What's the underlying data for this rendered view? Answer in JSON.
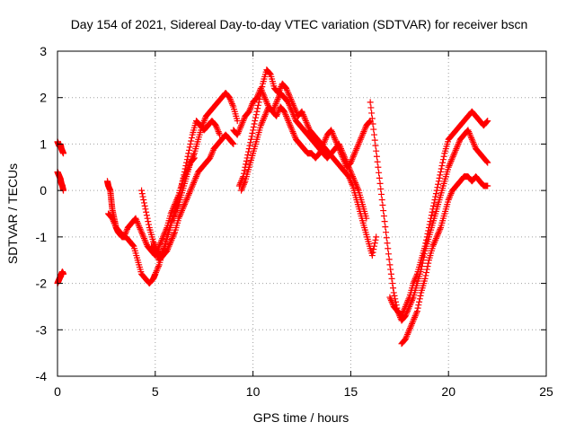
{
  "chart_data": {
    "type": "scatter",
    "title": "Day 154 of 2021, Sidereal Day-to-day VTEC variation (SDTVAR) for receiver bscn",
    "xlabel": "GPS time / hours",
    "ylabel": "SDTVAR / TECUs",
    "xlim": [
      0,
      25
    ],
    "ylim": [
      -4,
      3
    ],
    "xticks": [
      0,
      5,
      10,
      15,
      20,
      25
    ],
    "yticks": [
      -4,
      -3,
      -2,
      -1,
      0,
      1,
      2,
      3
    ],
    "grid": true,
    "marker": "plus",
    "color": "#ff0000",
    "series": [
      {
        "x": [
          0.0,
          0.05,
          0.1,
          0.15,
          0.2,
          0.25,
          0.3
        ],
        "y": [
          1.05,
          1.0,
          0.95,
          1.0,
          0.9,
          0.85,
          0.8
        ]
      },
      {
        "x": [
          0.0,
          0.05,
          0.1,
          0.15,
          0.2,
          0.25,
          0.3
        ],
        "y": [
          0.4,
          0.35,
          0.3,
          0.25,
          0.15,
          0.1,
          0.0
        ]
      },
      {
        "x": [
          0.0,
          0.05,
          0.1,
          0.15,
          0.2,
          0.25,
          0.3
        ],
        "y": [
          -2.0,
          -1.95,
          -1.9,
          -1.85,
          -1.8,
          -1.75,
          -1.8
        ]
      },
      {
        "x": [
          2.55,
          2.6,
          2.7,
          2.75,
          2.8,
          2.9,
          3.0,
          3.1,
          3.3,
          3.5,
          3.7,
          3.9,
          4.1,
          4.3,
          4.5,
          4.7,
          4.9,
          5.0,
          5.2,
          5.4,
          5.6,
          5.8,
          6.0,
          6.2,
          6.4,
          6.6,
          6.8,
          7.0,
          7.2,
          7.4,
          7.6,
          7.8,
          8.0,
          8.2,
          8.4,
          8.6,
          8.8,
          9.0,
          9.2
        ],
        "y": [
          0.2,
          0.1,
          0.0,
          -0.2,
          -0.4,
          -0.6,
          -0.8,
          -0.9,
          -1.0,
          -1.0,
          -1.1,
          -1.2,
          -1.5,
          -1.8,
          -1.9,
          -2.0,
          -1.9,
          -1.8,
          -1.6,
          -1.3,
          -1.0,
          -0.7,
          -0.5,
          -0.3,
          0.0,
          0.3,
          0.6,
          0.8,
          1.1,
          1.4,
          1.6,
          1.7,
          1.8,
          1.9,
          2.0,
          2.1,
          2.0,
          1.8,
          1.5
        ]
      },
      {
        "x": [
          2.6,
          2.8,
          3.0,
          3.2,
          3.4,
          3.6,
          3.8,
          4.0,
          4.2,
          4.4,
          4.6,
          4.8,
          5.0,
          5.2,
          5.4,
          5.6,
          5.8,
          6.0,
          6.2,
          6.4,
          6.6,
          6.8,
          7.0
        ],
        "y": [
          -0.5,
          -0.6,
          -0.8,
          -0.9,
          -1.0,
          -0.8,
          -0.7,
          -0.6,
          -0.8,
          -1.0,
          -1.2,
          -1.3,
          -1.4,
          -1.2,
          -1.0,
          -0.8,
          -0.5,
          -0.3,
          -0.1,
          0.2,
          0.4,
          0.6,
          0.7
        ]
      },
      {
        "x": [
          4.3,
          4.5,
          4.7,
          4.9,
          5.1,
          5.3,
          5.5,
          5.7,
          5.9,
          6.1,
          6.3,
          6.5,
          6.7,
          6.9,
          7.1,
          7.3,
          7.5,
          7.7,
          7.9,
          8.1,
          8.3
        ],
        "y": [
          0.0,
          -0.4,
          -0.8,
          -1.1,
          -1.3,
          -1.4,
          -1.2,
          -0.9,
          -0.6,
          -0.3,
          0.0,
          0.4,
          0.8,
          1.2,
          1.5,
          1.4,
          1.3,
          1.4,
          1.5,
          1.4,
          1.2
        ]
      },
      {
        "x": [
          4.8,
          5.0,
          5.2,
          5.4,
          5.6,
          5.8,
          6.0,
          6.2,
          6.4,
          6.6,
          6.8,
          7.0,
          7.2,
          7.4,
          7.6,
          7.8,
          8.0,
          8.2,
          8.4,
          8.6,
          8.8,
          9.0
        ],
        "y": [
          -1.2,
          -1.3,
          -1.5,
          -1.4,
          -1.3,
          -1.1,
          -0.9,
          -0.6,
          -0.4,
          -0.2,
          0.0,
          0.2,
          0.4,
          0.5,
          0.6,
          0.7,
          0.9,
          1.0,
          1.1,
          1.2,
          1.1,
          1.0
        ]
      },
      {
        "x": [
          9.3,
          9.5,
          9.7,
          9.9,
          10.1,
          10.3,
          10.5,
          10.7,
          10.9,
          11.1,
          11.3,
          11.5,
          11.7,
          11.9,
          12.1,
          12.3,
          12.5,
          12.7,
          12.9,
          13.1,
          13.3,
          13.5,
          13.7,
          13.9,
          14.1,
          14.3,
          14.5,
          14.7,
          14.9,
          15.1,
          15.3,
          15.5,
          15.7,
          15.9,
          16.1,
          16.3
        ],
        "y": [
          0.1,
          0.3,
          0.7,
          1.1,
          1.5,
          1.9,
          2.3,
          2.6,
          2.5,
          2.2,
          2.1,
          2.3,
          2.2,
          2.0,
          1.8,
          1.6,
          1.7,
          1.5,
          1.3,
          1.2,
          1.1,
          1.0,
          0.9,
          0.8,
          0.7,
          0.6,
          0.5,
          0.4,
          0.3,
          0.1,
          -0.2,
          -0.5,
          -0.8,
          -1.1,
          -1.4,
          -1.0
        ]
      },
      {
        "x": [
          9.0,
          9.2,
          9.4,
          9.6,
          9.8,
          10.0,
          10.2,
          10.4,
          10.6,
          10.8,
          11.0,
          11.2,
          11.4,
          11.6,
          11.8,
          12.0,
          12.2,
          12.4,
          12.6,
          12.8,
          13.0,
          13.2,
          13.4,
          13.6,
          13.8,
          14.0,
          14.2,
          14.4,
          14.6,
          14.8,
          15.0,
          15.2,
          15.4,
          15.6,
          15.8
        ],
        "y": [
          1.3,
          1.2,
          1.4,
          1.6,
          1.7,
          1.9,
          2.0,
          2.2,
          2.0,
          1.8,
          1.7,
          1.9,
          2.1,
          2.0,
          1.9,
          1.7,
          1.5,
          1.4,
          1.3,
          1.2,
          1.1,
          1.0,
          0.9,
          0.8,
          0.7,
          0.8,
          0.9,
          1.0,
          0.8,
          0.6,
          0.4,
          0.2,
          0.0,
          -0.3,
          -0.6
        ]
      },
      {
        "x": [
          9.4,
          9.6,
          9.8,
          10.0,
          10.2,
          10.4,
          10.6,
          10.8,
          11.0,
          11.2,
          11.4,
          11.6,
          11.8,
          12.0,
          12.2,
          12.4,
          12.6,
          12.8,
          13.0,
          13.2,
          13.4,
          13.6,
          13.8,
          14.0,
          14.2,
          14.4,
          14.6,
          14.8,
          15.0,
          15.2,
          15.4,
          15.6,
          15.8,
          16.0
        ],
        "y": [
          0.0,
          0.2,
          0.5,
          0.8,
          1.1,
          1.4,
          1.6,
          1.8,
          1.7,
          1.6,
          1.8,
          1.7,
          1.5,
          1.3,
          1.1,
          1.0,
          0.9,
          0.8,
          0.8,
          0.7,
          0.8,
          1.0,
          1.2,
          1.3,
          1.1,
          0.9,
          0.7,
          0.5,
          0.6,
          0.8,
          1.0,
          1.2,
          1.4,
          1.5
        ]
      },
      {
        "x": [
          16.0,
          16.2,
          16.4,
          16.6,
          16.8,
          17.0,
          17.2,
          17.4,
          17.6,
          17.8,
          18.0,
          18.2,
          18.4,
          18.6,
          18.8,
          19.0,
          19.2,
          19.4,
          19.6,
          19.8,
          20.0,
          20.2,
          20.4,
          20.6,
          20.8,
          21.0,
          21.2,
          21.4,
          21.6,
          21.8,
          22.0
        ],
        "y": [
          1.9,
          1.2,
          0.5,
          -0.2,
          -0.9,
          -1.6,
          -2.2,
          -2.6,
          -2.7,
          -2.5,
          -2.3,
          -2.0,
          -1.8,
          -1.5,
          -1.2,
          -0.8,
          -0.4,
          0.0,
          0.4,
          0.8,
          1.1,
          1.2,
          1.3,
          1.4,
          1.5,
          1.6,
          1.7,
          1.6,
          1.5,
          1.4,
          1.5
        ]
      },
      {
        "x": [
          17.0,
          17.2,
          17.4,
          17.6,
          17.8,
          18.0,
          18.2,
          18.4,
          18.6,
          18.8,
          19.0,
          19.2,
          19.4,
          19.6,
          19.8,
          20.0,
          20.2,
          20.4,
          20.6,
          20.8,
          21.0,
          21.2,
          21.4,
          21.6,
          21.8,
          22.0
        ],
        "y": [
          -2.3,
          -2.5,
          -2.6,
          -2.8,
          -2.7,
          -2.5,
          -2.3,
          -2.0,
          -1.7,
          -1.3,
          -1.0,
          -0.7,
          -0.4,
          -0.1,
          0.2,
          0.5,
          0.7,
          0.9,
          1.1,
          1.2,
          1.3,
          1.1,
          0.9,
          0.8,
          0.7,
          0.6
        ]
      },
      {
        "x": [
          17.6,
          17.8,
          18.0,
          18.2,
          18.4,
          18.6,
          18.8,
          19.0,
          19.2,
          19.4,
          19.6,
          19.8,
          20.0,
          20.2,
          20.4,
          20.6,
          20.8,
          21.0,
          21.2,
          21.4,
          21.6,
          21.8,
          22.0
        ],
        "y": [
          -3.3,
          -3.2,
          -3.0,
          -2.8,
          -2.6,
          -2.2,
          -1.9,
          -1.5,
          -1.2,
          -1.0,
          -0.8,
          -0.5,
          -0.2,
          0.0,
          0.1,
          0.2,
          0.3,
          0.3,
          0.2,
          0.3,
          0.2,
          0.1,
          0.1
        ]
      }
    ]
  }
}
